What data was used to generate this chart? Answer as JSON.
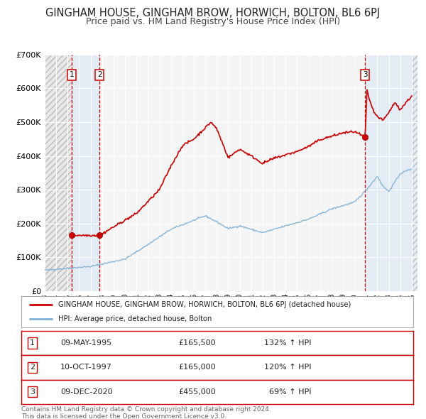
{
  "title": "GINGHAM HOUSE, GINGHAM BROW, HORWICH, BOLTON, BL6 6PJ",
  "subtitle": "Price paid vs. HM Land Registry's House Price Index (HPI)",
  "title_fontsize": 10.5,
  "subtitle_fontsize": 9,
  "xlim": [
    1993.0,
    2025.5
  ],
  "ylim": [
    0,
    700000
  ],
  "yticks": [
    0,
    100000,
    200000,
    300000,
    400000,
    500000,
    600000,
    700000
  ],
  "ytick_labels": [
    "£0",
    "£100K",
    "£200K",
    "£300K",
    "£400K",
    "£500K",
    "£600K",
    "£700K"
  ],
  "xticks": [
    1993,
    1994,
    1995,
    1996,
    1997,
    1998,
    1999,
    2000,
    2001,
    2002,
    2003,
    2004,
    2005,
    2006,
    2007,
    2008,
    2009,
    2010,
    2011,
    2012,
    2013,
    2014,
    2015,
    2016,
    2017,
    2018,
    2019,
    2020,
    2021,
    2022,
    2023,
    2024,
    2025
  ],
  "bg_color": "#ffffff",
  "plot_bg_color": "#f5f5f5",
  "grid_color": "#ffffff",
  "red_line_color": "#cc0000",
  "blue_line_color": "#7fafd4",
  "sale_marker_color": "#cc0000",
  "sale_marker_size": 6,
  "vline_color": "#cc0000",
  "transactions": [
    {
      "num": 1,
      "year": 1995.36,
      "price": 165500
    },
    {
      "num": 2,
      "year": 1997.78,
      "price": 165000
    },
    {
      "num": 3,
      "year": 2020.94,
      "price": 455000
    }
  ],
  "legend_house_label": "GINGHAM HOUSE, GINGHAM BROW, HORWICH, BOLTON, BL6 6PJ (detached house)",
  "legend_hpi_label": "HPI: Average price, detached house, Bolton",
  "table_rows": [
    {
      "num": 1,
      "date": "09-MAY-1995",
      "price": "£165,500",
      "pct": "132% ↑ HPI"
    },
    {
      "num": 2,
      "date": "10-OCT-1997",
      "price": "£165,000",
      "pct": "120% ↑ HPI"
    },
    {
      "num": 3,
      "date": "09-DEC-2020",
      "price": "£455,000",
      "pct": "  69% ↑ HPI"
    }
  ],
  "footer": "Contains HM Land Registry data © Crown copyright and database right 2024.\nThis data is licensed under the Open Government Licence v3.0."
}
